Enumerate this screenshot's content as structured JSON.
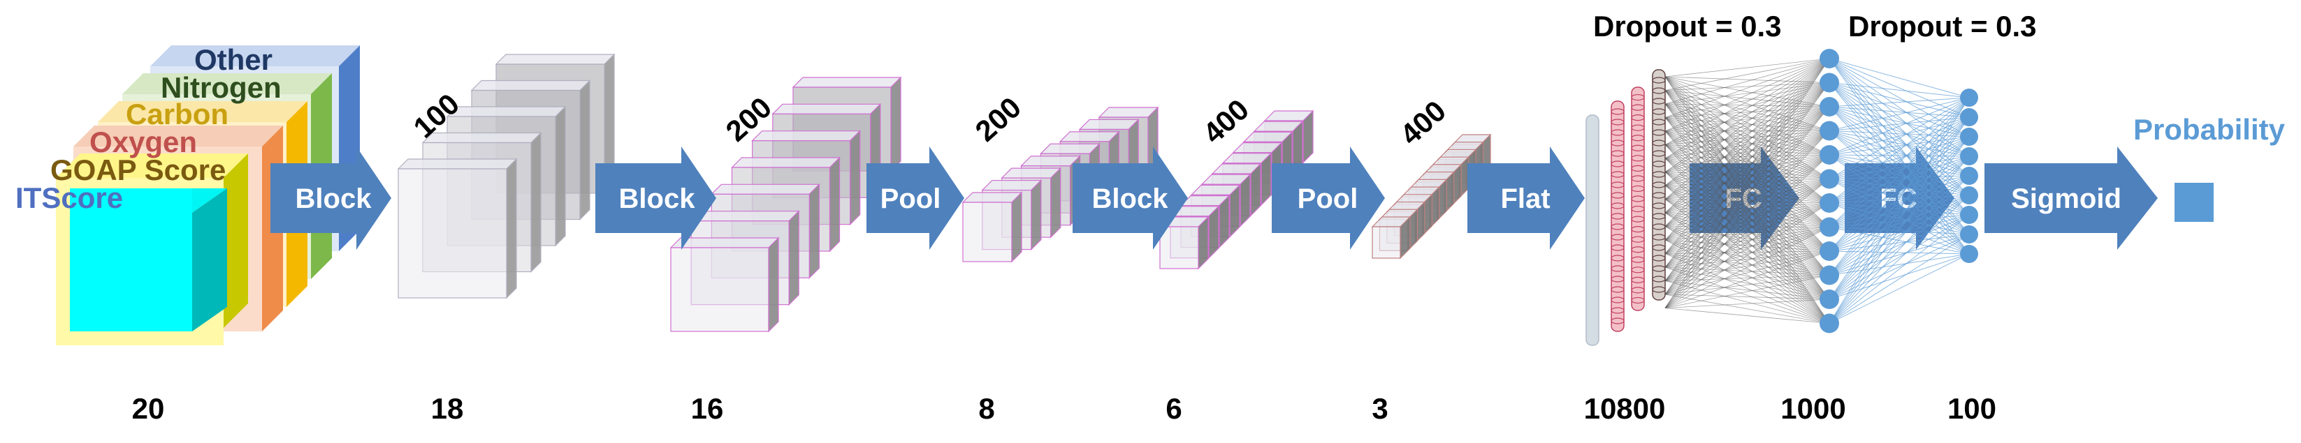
{
  "input_channels": [
    {
      "label": "ITScore",
      "color": "#4f6fc0"
    },
    {
      "label": "GOAP Score",
      "color": "#7a5a10"
    },
    {
      "label": "Oxygen",
      "color": "#c0504d"
    },
    {
      "label": "Carbon",
      "color": "#c8a010"
    },
    {
      "label": "Nitrogen",
      "color": "#2e4e1e"
    },
    {
      "label": "Other",
      "color": "#1f3864"
    }
  ],
  "stages": [
    {
      "op": "Block",
      "channels": "100",
      "size": "18"
    },
    {
      "op": "Block",
      "channels": "200",
      "size": "16"
    },
    {
      "op": "Pool",
      "channels": "200",
      "size": "8"
    },
    {
      "op": "Block",
      "channels": "400",
      "size": "6"
    },
    {
      "op": "Pool",
      "channels": "400",
      "size": "3"
    }
  ],
  "input_size": "20",
  "flat": {
    "op": "Flat",
    "size": "10800"
  },
  "fc_layers": [
    {
      "op": "FC",
      "size": "1000",
      "dropout": "Dropout = 0.3"
    },
    {
      "op": "FC",
      "size": "100",
      "dropout": "Dropout = 0.3"
    }
  ],
  "output": {
    "op": "Sigmoid",
    "label": "Probability"
  },
  "colors": {
    "arrow": "#4f81bd",
    "node": "#5b9bd5",
    "output_box": "#5b9bd5",
    "probability_text": "#5b9bd5",
    "edge_gray": "#555555",
    "edge_blue": "#5b9bd5"
  }
}
